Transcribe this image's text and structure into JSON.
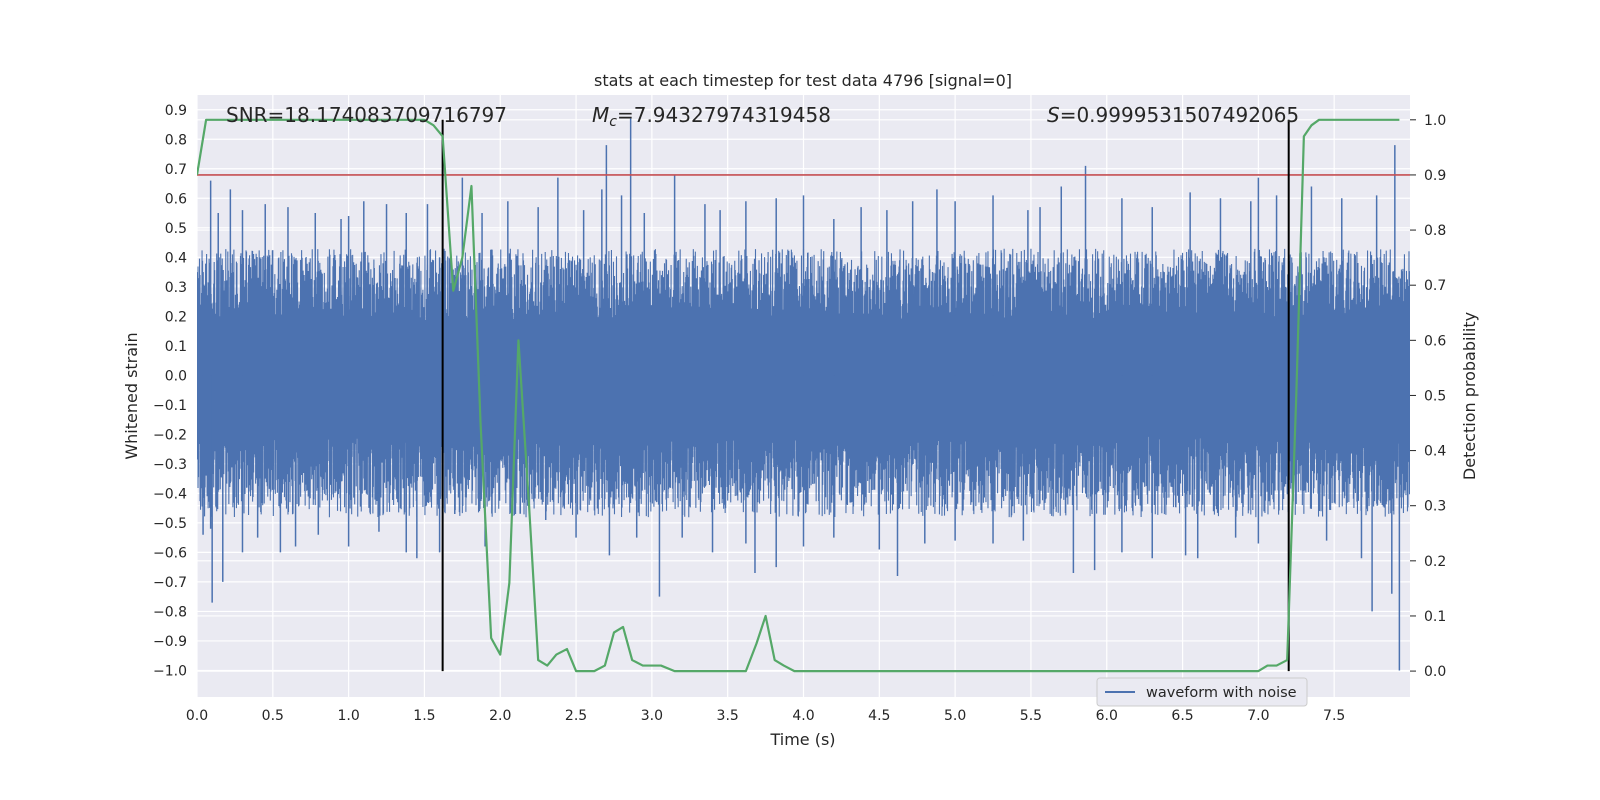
{
  "chart_data": {
    "type": "line",
    "title": "stats at each timestep for test data 4796 [signal=0]",
    "xlabel": "Time (s)",
    "ylabel_left": "Whitened strain",
    "ylabel_right": "Detection probability",
    "xlim": [
      0,
      8
    ],
    "ylim_left": [
      -1.09,
      0.95
    ],
    "ylim_right": [
      -0.047,
      1.045
    ],
    "x_ticks": [
      "0.0",
      "0.5",
      "1.0",
      "1.5",
      "2.0",
      "2.5",
      "3.0",
      "3.5",
      "4.0",
      "4.5",
      "5.0",
      "5.5",
      "6.0",
      "6.5",
      "7.0",
      "7.5"
    ],
    "y_left_ticks": [
      "−1.0",
      "−0.9",
      "−0.8",
      "−0.7",
      "−0.6",
      "−0.5",
      "−0.4",
      "−0.3",
      "−0.2",
      "−0.1",
      "0.0",
      "0.1",
      "0.2",
      "0.3",
      "0.4",
      "0.5",
      "0.6",
      "0.7",
      "0.8",
      "0.9"
    ],
    "y_right_ticks": [
      "0.0",
      "0.1",
      "0.2",
      "0.3",
      "0.4",
      "0.5",
      "0.6",
      "0.7",
      "0.8",
      "0.9",
      "1.0"
    ],
    "grid": true,
    "legend": {
      "placement": "lower-right",
      "entries": [
        "waveform with noise"
      ]
    },
    "annotations": {
      "snr": "SNR=18.174083709716797",
      "mc_prefix": "M",
      "mc_sub": "c",
      "mc_value": "=7.94327974319458",
      "s_prefix": "S",
      "s_value": "=0.9999531507492065"
    },
    "threshold_line": {
      "axis": "right",
      "value": 0.9,
      "color": "#c44e52"
    },
    "vertical_lines": {
      "x": [
        1.62,
        7.2
      ],
      "color": "#000000"
    },
    "waveform_envelope": {
      "name": "waveform with noise",
      "color": "#4c72b0",
      "typical_max": 0.33,
      "typical_min": -0.37,
      "peaks": [
        [
          0.04,
          0.35
        ],
        [
          0.09,
          0.66
        ],
        [
          0.14,
          0.55
        ],
        [
          0.22,
          0.63
        ],
        [
          0.3,
          0.56
        ],
        [
          0.45,
          0.58
        ],
        [
          0.6,
          0.57
        ],
        [
          0.78,
          0.55
        ],
        [
          0.95,
          0.53
        ],
        [
          1.0,
          0.54
        ],
        [
          1.1,
          0.59
        ],
        [
          1.25,
          0.58
        ],
        [
          1.38,
          0.55
        ],
        [
          1.52,
          0.58
        ],
        [
          1.6,
          0.4
        ],
        [
          1.75,
          0.67
        ],
        [
          1.88,
          0.55
        ],
        [
          2.05,
          0.59
        ],
        [
          2.25,
          0.57
        ],
        [
          2.38,
          0.67
        ],
        [
          2.55,
          0.56
        ],
        [
          2.67,
          0.63
        ],
        [
          2.7,
          0.78
        ],
        [
          2.8,
          0.61
        ],
        [
          2.86,
          0.87
        ],
        [
          2.95,
          0.55
        ],
        [
          3.15,
          0.68
        ],
        [
          3.35,
          0.58
        ],
        [
          3.45,
          0.56
        ],
        [
          3.62,
          0.59
        ],
        [
          3.82,
          0.6
        ],
        [
          4.0,
          0.61
        ],
        [
          4.2,
          0.53
        ],
        [
          4.38,
          0.57
        ],
        [
          4.55,
          0.56
        ],
        [
          4.72,
          0.59
        ],
        [
          4.88,
          0.63
        ],
        [
          5.0,
          0.59
        ],
        [
          5.25,
          0.61
        ],
        [
          5.48,
          0.56
        ],
        [
          5.56,
          0.57
        ],
        [
          5.7,
          0.64
        ],
        [
          5.86,
          0.71
        ],
        [
          6.1,
          0.6
        ],
        [
          6.3,
          0.57
        ],
        [
          6.55,
          0.62
        ],
        [
          6.75,
          0.6
        ],
        [
          6.95,
          0.59
        ],
        [
          7.0,
          0.67
        ],
        [
          7.12,
          0.61
        ],
        [
          7.35,
          0.64
        ],
        [
          7.55,
          0.6
        ],
        [
          7.78,
          0.61
        ],
        [
          7.9,
          0.78
        ]
      ],
      "troughs": [
        [
          0.04,
          -0.54
        ],
        [
          0.09,
          -0.52
        ],
        [
          0.1,
          -0.77
        ],
        [
          0.17,
          -0.7
        ],
        [
          0.3,
          -0.6
        ],
        [
          0.4,
          -0.55
        ],
        [
          0.55,
          -0.6
        ],
        [
          0.65,
          -0.58
        ],
        [
          0.8,
          -0.54
        ],
        [
          1.0,
          -0.58
        ],
        [
          1.2,
          -0.53
        ],
        [
          1.38,
          -0.6
        ],
        [
          1.45,
          -0.62
        ],
        [
          1.6,
          -0.6
        ],
        [
          1.7,
          -0.47
        ],
        [
          1.9,
          -0.58
        ],
        [
          2.1,
          -0.47
        ],
        [
          2.3,
          -0.49
        ],
        [
          2.5,
          -0.55
        ],
        [
          2.72,
          -0.61
        ],
        [
          2.9,
          -0.55
        ],
        [
          3.05,
          -0.75
        ],
        [
          3.2,
          -0.55
        ],
        [
          3.4,
          -0.6
        ],
        [
          3.62,
          -0.57
        ],
        [
          3.68,
          -0.67
        ],
        [
          3.82,
          -0.65
        ],
        [
          4.0,
          -0.58
        ],
        [
          4.2,
          -0.55
        ],
        [
          4.5,
          -0.59
        ],
        [
          4.62,
          -0.68
        ],
        [
          4.8,
          -0.57
        ],
        [
          5.0,
          -0.56
        ],
        [
          5.25,
          -0.57
        ],
        [
          5.45,
          -0.56
        ],
        [
          5.78,
          -0.67
        ],
        [
          5.92,
          -0.66
        ],
        [
          6.1,
          -0.6
        ],
        [
          6.3,
          -0.62
        ],
        [
          6.52,
          -0.61
        ],
        [
          6.6,
          -0.62
        ],
        [
          6.85,
          -0.55
        ],
        [
          7.0,
          -0.57
        ],
        [
          7.2,
          -0.52
        ],
        [
          7.45,
          -0.56
        ],
        [
          7.68,
          -0.62
        ],
        [
          7.75,
          -0.8
        ],
        [
          7.88,
          -0.74
        ],
        [
          7.93,
          -1.0
        ]
      ]
    },
    "probability_series": {
      "color": "#55a868",
      "x": [
        0.0,
        0.06,
        0.15,
        1.5,
        1.56,
        1.62,
        1.69,
        1.75,
        1.81,
        1.87,
        1.94,
        2.0,
        2.06,
        2.12,
        2.19,
        2.25,
        2.31,
        2.37,
        2.44,
        2.5,
        2.56,
        2.62,
        2.69,
        2.75,
        2.81,
        2.87,
        2.94,
        3.0,
        3.06,
        3.15,
        3.3,
        3.4,
        3.5,
        3.62,
        3.69,
        3.75,
        3.81,
        3.87,
        3.94,
        4.05,
        4.2,
        4.5,
        5.0,
        5.3,
        5.5,
        6.0,
        6.5,
        6.8,
        7.0,
        7.06,
        7.12,
        7.19,
        7.25,
        7.3,
        7.35,
        7.4,
        7.5,
        7.93
      ],
      "y": [
        0.9,
        1.0,
        1.0,
        1.0,
        0.99,
        0.97,
        0.69,
        0.75,
        0.88,
        0.45,
        0.06,
        0.03,
        0.16,
        0.6,
        0.3,
        0.02,
        0.01,
        0.03,
        0.04,
        0.0,
        0.0,
        0.0,
        0.01,
        0.07,
        0.08,
        0.02,
        0.01,
        0.01,
        0.01,
        0.0,
        0.0,
        0.0,
        0.0,
        0.0,
        0.05,
        0.1,
        0.02,
        0.01,
        0.0,
        0.0,
        0.0,
        0.0,
        0.0,
        0.0,
        0.0,
        0.0,
        0.0,
        0.0,
        0.0,
        0.01,
        0.01,
        0.02,
        0.5,
        0.97,
        0.99,
        1.0,
        1.0,
        1.0
      ]
    }
  }
}
